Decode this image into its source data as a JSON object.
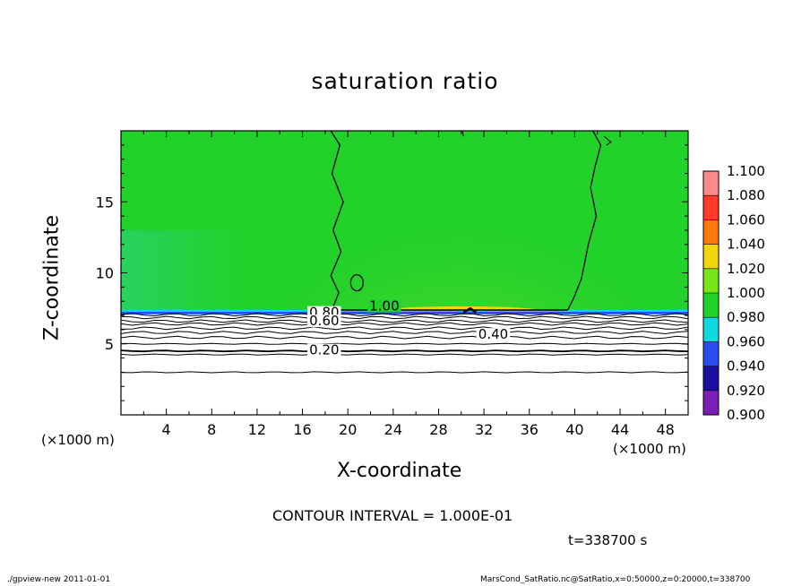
{
  "chart_data": {
    "type": "heatmap",
    "title": "saturation ratio",
    "xlabel": "X-coordinate",
    "ylabel": "Z-coordinate",
    "x_unit": "(×1000 m)",
    "z_unit": "(×1000 m)",
    "xlim": [
      0,
      50
    ],
    "zlim": [
      0,
      20
    ],
    "x_ticks": [
      4,
      8,
      12,
      16,
      20,
      24,
      28,
      32,
      36,
      40,
      44,
      48
    ],
    "z_ticks": [
      5,
      10,
      15
    ],
    "colorbar": {
      "levels": [
        "0.900",
        "0.920",
        "0.940",
        "0.960",
        "0.980",
        "1.000",
        "1.020",
        "1.040",
        "1.060",
        "1.080",
        "1.100"
      ],
      "colors": [
        "#7a1fb5",
        "#1a10a0",
        "#2a4df0",
        "#10d8e0",
        "#19d86a",
        "#22d12a",
        "#79e61a",
        "#f4d40a",
        "#ff7a0a",
        "#ff3d2a",
        "#ff8c8c"
      ]
    },
    "field": {
      "upper_layer_value_range": [
        1.0,
        1.02
      ],
      "upper_layer_base_z": 7.2,
      "maximum_near_x": 30,
      "lower_layer": "subsaturated, contour lines only"
    },
    "contours": [
      {
        "level": "1.00",
        "label": "1.00"
      },
      {
        "level": "0.80",
        "label": "0.80"
      },
      {
        "level": "0.60",
        "label": "0.60"
      },
      {
        "level": "0.40",
        "label": "0.40"
      },
      {
        "level": "0.20",
        "label": "0.20"
      }
    ],
    "contour_interval": "CONTOUR INTERVAL = 1.000E-01",
    "time": "t=338700 s"
  },
  "footer": {
    "left": "./gpview-new   2011-01-01",
    "right": "MarsCond_SatRatio.nc@SatRatio,x=0:50000,z=0:20000,t=338700"
  }
}
